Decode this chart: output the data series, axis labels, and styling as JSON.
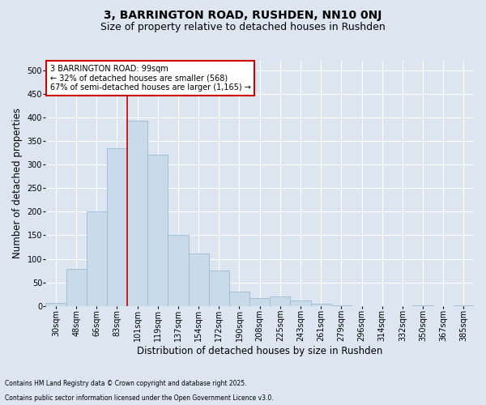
{
  "title1": "3, BARRINGTON ROAD, RUSHDEN, NN10 0NJ",
  "title2": "Size of property relative to detached houses in Rushden",
  "xlabel": "Distribution of detached houses by size in Rushden",
  "ylabel": "Number of detached properties",
  "bar_labels": [
    "30sqm",
    "48sqm",
    "66sqm",
    "83sqm",
    "101sqm",
    "119sqm",
    "137sqm",
    "154sqm",
    "172sqm",
    "190sqm",
    "208sqm",
    "225sqm",
    "243sqm",
    "261sqm",
    "279sqm",
    "296sqm",
    "314sqm",
    "332sqm",
    "350sqm",
    "367sqm",
    "385sqm"
  ],
  "bar_values": [
    7,
    78,
    200,
    335,
    393,
    320,
    150,
    111,
    75,
    30,
    16,
    20,
    12,
    5,
    2,
    0,
    0,
    0,
    2,
    0,
    2
  ],
  "bar_color": "#c9daea",
  "bar_edge_color": "#9bbbd4",
  "background_color": "#dde6f0",
  "grid_color": "#ffffff",
  "vline_color": "#cc0000",
  "vline_pos": 4,
  "annotation_text": "3 BARRINGTON ROAD: 99sqm\n← 32% of detached houses are smaller (568)\n67% of semi-detached houses are larger (1,165) →",
  "annotation_box_facecolor": "#ffffff",
  "annotation_box_edgecolor": "#cc0000",
  "ylim": [
    0,
    520
  ],
  "yticks": [
    0,
    50,
    100,
    150,
    200,
    250,
    300,
    350,
    400,
    450,
    500
  ],
  "title1_fontsize": 10,
  "title2_fontsize": 9,
  "xlabel_fontsize": 8.5,
  "ylabel_fontsize": 8.5,
  "tick_fontsize": 7,
  "annotation_fontsize": 7,
  "footnote1": "Contains HM Land Registry data © Crown copyright and database right 2025.",
  "footnote2": "Contains public sector information licensed under the Open Government Licence v3.0.",
  "footnote_fontsize": 5.5
}
